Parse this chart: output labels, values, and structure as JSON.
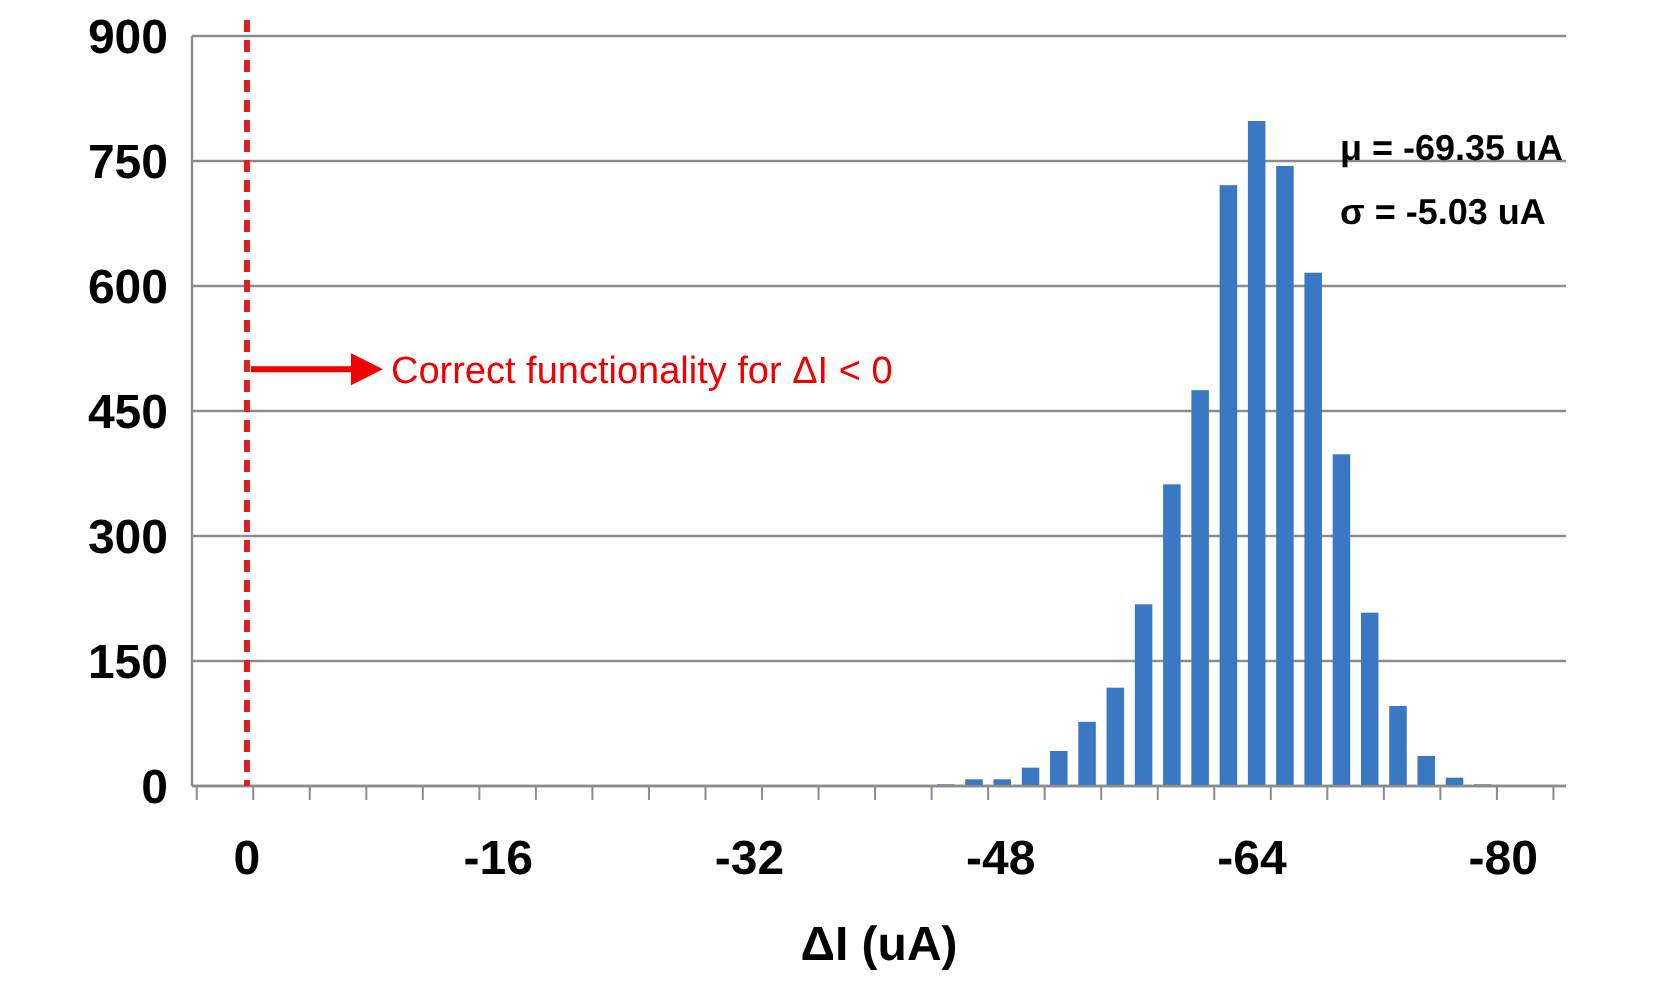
{
  "chart_data": {
    "type": "histogram",
    "xlabel": "ΔI (uA)",
    "bins": [
      -40,
      -41.8,
      -43.6,
      -45.4,
      -47.2,
      -49,
      -50.8,
      -52.6,
      -54.4,
      -56.2,
      -58,
      -59.8,
      -61.6,
      -63.4,
      -65.2,
      -67,
      -68.8,
      -70.6,
      -72.4,
      -74.2,
      -76,
      -77.8,
      -79.6
    ],
    "values": [
      1,
      1,
      2,
      8,
      8,
      22,
      42,
      77,
      118,
      218,
      362,
      475,
      721,
      798,
      744,
      616,
      398,
      208,
      96,
      36,
      10,
      2
    ],
    "color": "#3a78c3",
    "xlim": [
      3.5,
      -84
    ],
    "xticks": [
      0,
      -16,
      -32,
      -48,
      -64,
      -80,
      {
        "value": 3.2,
        "label": null
      },
      {
        "value": -0.4,
        "label": null
      },
      {
        "value": -4,
        "label": null
      },
      {
        "value": -7.6,
        "label": null
      },
      {
        "value": -11.2,
        "label": null
      },
      {
        "value": -14.8,
        "label": null
      },
      {
        "value": -18.4,
        "label": null
      },
      {
        "value": -22,
        "label": null
      },
      {
        "value": -25.6,
        "label": null
      },
      {
        "value": -29.2,
        "label": null
      },
      {
        "value": -32.8,
        "label": null
      },
      {
        "value": -36.4,
        "label": null
      },
      {
        "value": -40,
        "label": null
      },
      {
        "value": -43.6,
        "label": null
      },
      {
        "value": -47.2,
        "label": null
      },
      {
        "value": -50.8,
        "label": null
      },
      {
        "value": -54.4,
        "label": null
      },
      {
        "value": -58,
        "label": null
      },
      {
        "value": -61.6,
        "label": null
      },
      {
        "value": -65.2,
        "label": null
      },
      {
        "value": -68.8,
        "label": null
      },
      {
        "value": -72.4,
        "label": null
      },
      {
        "value": -76,
        "label": null
      },
      {
        "value": -79.6,
        "label": null
      },
      {
        "value": -83.2,
        "label": null
      }
    ],
    "ylim": [
      0,
      900
    ],
    "yticks": [
      0,
      150,
      300,
      450,
      600,
      750,
      900
    ],
    "grid": "y",
    "ref_lines": [
      {
        "axis": "x",
        "value": 0,
        "color": "#e02020",
        "line_style": "dashed"
      }
    ],
    "annotations": [
      "μ = -69.35 uA",
      "σ = -5.03 uA",
      {
        "text": "Correct functionality for ΔI < 0",
        "x": 0,
        "y": 500
      }
    ]
  }
}
